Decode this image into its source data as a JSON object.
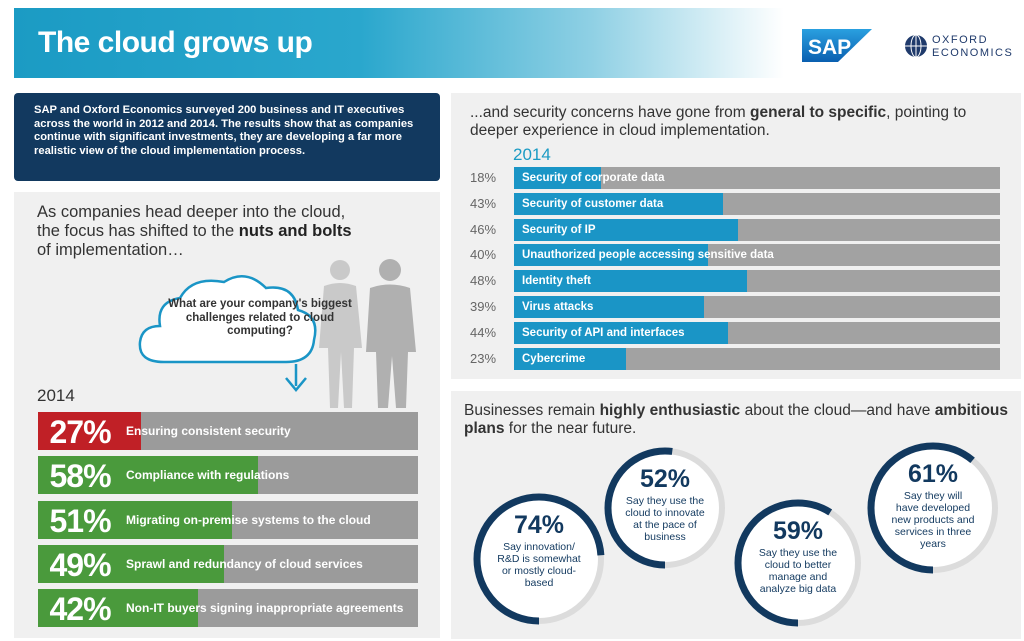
{
  "header": {
    "title": "The cloud grows up"
  },
  "logos": {
    "sap": "SAP",
    "oxford_line1": "OXFORD",
    "oxford_line2": "ECONOMICS"
  },
  "intro": "SAP and Oxford Economics surveyed 200 business and IT executives across the world in 2012 and 2014. The results show that as companies continue with significant investments, they are developing a far more realistic view of the cloud implementation process.",
  "left": {
    "heading_pre": "As companies head deeper into the cloud, the focus has shifted to the ",
    "heading_bold": "nuts and bolts",
    "heading_post": " of implementation…",
    "question": "What are your company's biggest challenges related to cloud computing?",
    "year": "2014",
    "items": [
      {
        "pct_label": "27%",
        "value": 27,
        "label": "Ensuring consistent security",
        "color": "#c02026"
      },
      {
        "pct_label": "58%",
        "value": 58,
        "label": "Compliance with regulations",
        "color": "#4a9a3c"
      },
      {
        "pct_label": "51%",
        "value": 51,
        "label": "Migrating on-premise systems to the cloud",
        "color": "#4a9a3c"
      },
      {
        "pct_label": "49%",
        "value": 49,
        "label": "Sprawl and redundancy of cloud services",
        "color": "#4a9a3c"
      },
      {
        "pct_label": "42%",
        "value": 42,
        "label": "Non-IT buyers signing inappropriate agreements",
        "color": "#4a9a3c"
      }
    ]
  },
  "right_top": {
    "heading_pre": "...and security concerns have gone from ",
    "heading_bold": "general to specific",
    "heading_post": ", pointing to deeper experience in cloud implementation.",
    "year": "2014",
    "items": [
      {
        "pct_label": "18%",
        "value": 18,
        "label": "Security of corporate data"
      },
      {
        "pct_label": "43%",
        "value": 43,
        "label": "Security of customer data"
      },
      {
        "pct_label": "46%",
        "value": 46,
        "label": "Security of IP"
      },
      {
        "pct_label": "40%",
        "value": 40,
        "label": "Unauthorized people accessing sensitive data"
      },
      {
        "pct_label": "48%",
        "value": 48,
        "label": "Identity theft"
      },
      {
        "pct_label": "39%",
        "value": 39,
        "label": "Virus attacks"
      },
      {
        "pct_label": "44%",
        "value": 44,
        "label": "Security of API and interfaces"
      },
      {
        "pct_label": "23%",
        "value": 23,
        "label": "Cybercrime"
      }
    ]
  },
  "right_bottom": {
    "heading_pre": "Businesses remain ",
    "heading_bold1": "highly enthusiastic",
    "heading_mid": " about the cloud—and have ",
    "heading_bold2": "ambitious plans",
    "heading_post": " for the near future.",
    "circles": [
      {
        "pct_label": "74%",
        "value": 74,
        "label": "Say innovation/ R&D is somewhat or mostly cloud-based"
      },
      {
        "pct_label": "52%",
        "value": 52,
        "label": "Say they use the cloud to innovate at the pace of business"
      },
      {
        "pct_label": "59%",
        "value": 59,
        "label": "Say they use the cloud to better manage and analyze big data"
      },
      {
        "pct_label": "61%",
        "value": 61,
        "label": "Say they will have developed new products and services in three years"
      }
    ]
  },
  "colors": {
    "navy": "#12395f",
    "blue": "#1a95c6",
    "gray": "#9b9b9b",
    "ring_bg": "#dcdcdc"
  }
}
